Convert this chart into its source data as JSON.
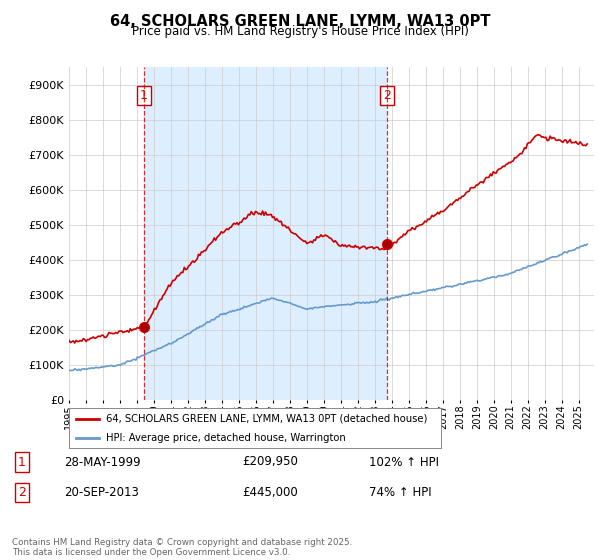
{
  "title": "64, SCHOLARS GREEN LANE, LYMM, WA13 0PT",
  "subtitle": "Price paid vs. HM Land Registry's House Price Index (HPI)",
  "legend_label_red": "64, SCHOLARS GREEN LANE, LYMM, WA13 0PT (detached house)",
  "legend_label_blue": "HPI: Average price, detached house, Warrington",
  "point1_label": "1",
  "point1_date": "28-MAY-1999",
  "point1_price": "£209,950",
  "point1_hpi": "102% ↑ HPI",
  "point1_year": 1999.41,
  "point1_value": 209950,
  "point2_label": "2",
  "point2_date": "20-SEP-2013",
  "point2_price": "£445,000",
  "point2_hpi": "74% ↑ HPI",
  "point2_year": 2013.72,
  "point2_value": 445000,
  "footer": "Contains HM Land Registry data © Crown copyright and database right 2025.\nThis data is licensed under the Open Government Licence v3.0.",
  "ylim": [
    0,
    950000
  ],
  "yticks": [
    0,
    100000,
    200000,
    300000,
    400000,
    500000,
    600000,
    700000,
    800000,
    900000
  ],
  "xlim_start": 1995,
  "xlim_end": 2025.9,
  "background_color": "#ffffff",
  "red_color": "#cc0000",
  "blue_color": "#6699cc",
  "fill_color": "#ddeeff",
  "grid_color": "#cccccc",
  "vline_color": "#cc0000"
}
